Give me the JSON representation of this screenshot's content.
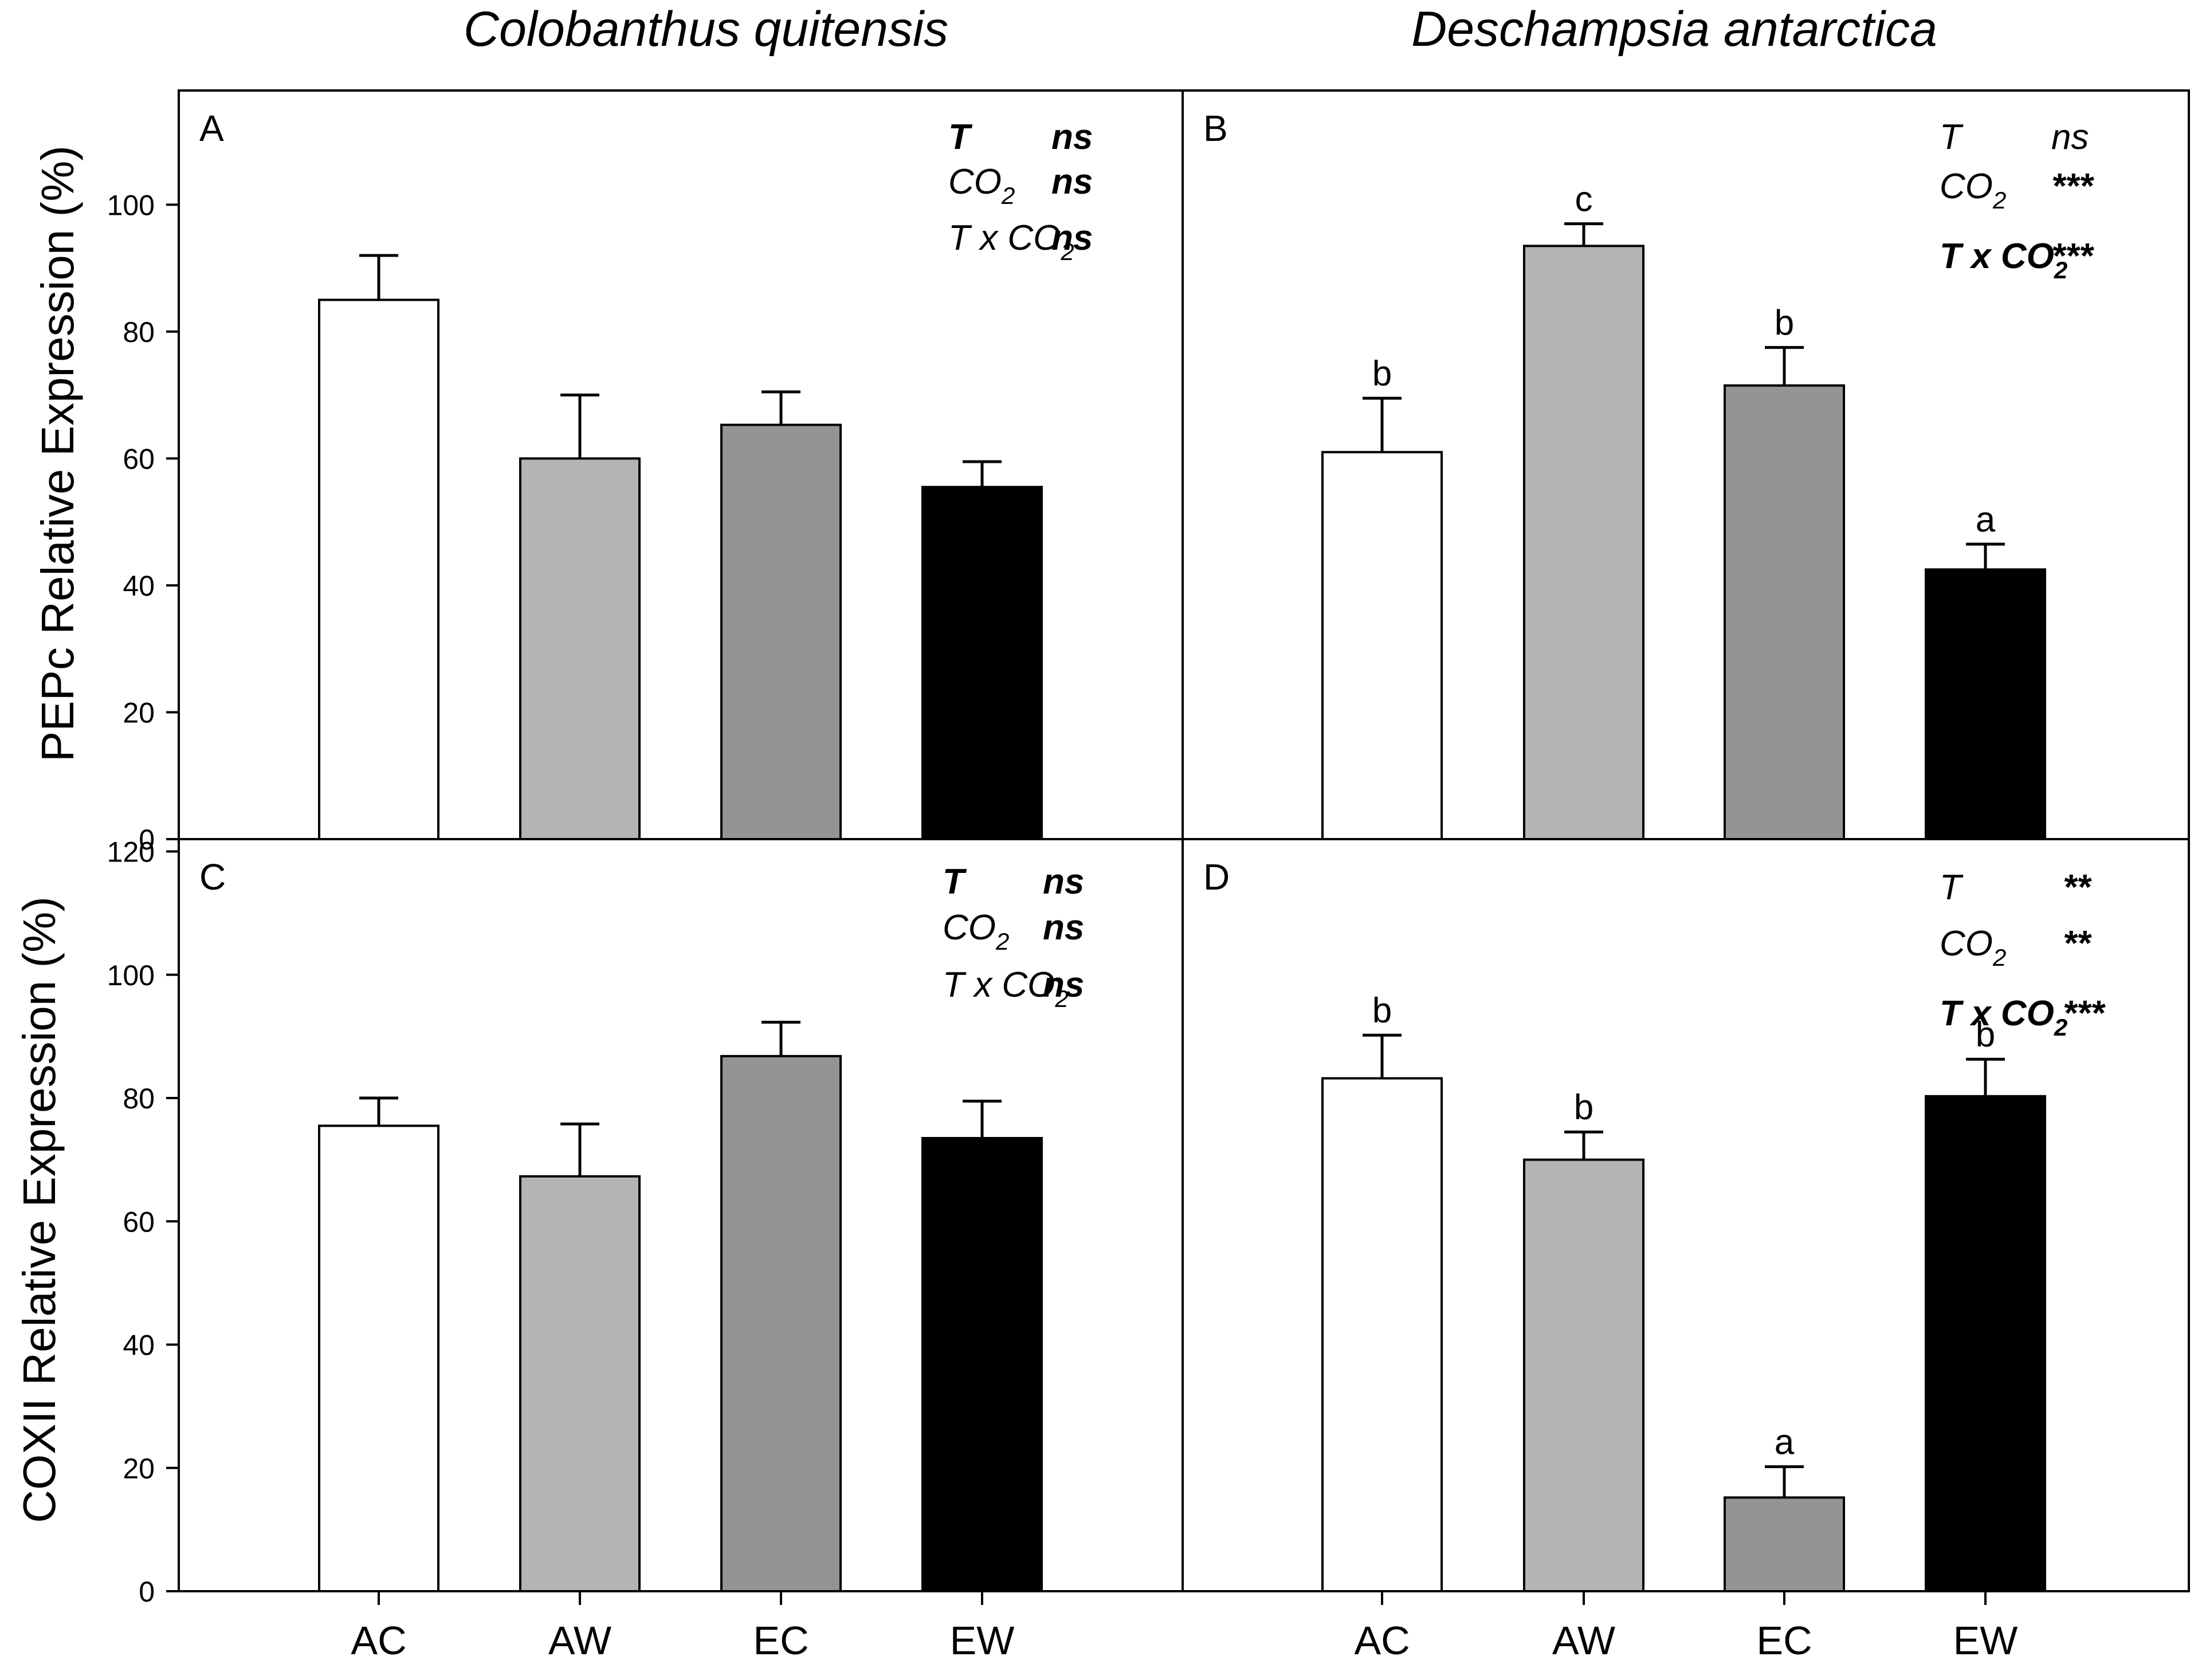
{
  "species": [
    "Colobanthus quitensis",
    "Deschampsia antarctica"
  ],
  "x_categories": [
    "AC",
    "AW",
    "EC",
    "EW"
  ],
  "bar_colors": {
    "AC": "#ffffff",
    "AW": "#b4b4b4",
    "EC": "#949494",
    "EW": "#000000"
  },
  "chart_data": [
    {
      "type": "bar",
      "panel": "A",
      "species": "Colobanthus quitensis",
      "ylabel": "PEPc Relative Expression (%)",
      "ylim": [
        0,
        118
      ],
      "yticks": [
        0,
        20,
        40,
        60,
        80,
        100
      ],
      "categories": [
        "AC",
        "AW",
        "EC",
        "EW"
      ],
      "values": [
        85,
        60,
        65.3,
        55.5
      ],
      "errors": [
        7,
        10,
        5.2,
        4
      ],
      "letters": [
        "",
        "",
        "",
        ""
      ],
      "stats": [
        {
          "term": "T",
          "sig": "ns",
          "bold": true
        },
        {
          "term": "CO2",
          "sig": "ns",
          "bold": false
        },
        {
          "term": "T x CO2",
          "sig": "ns",
          "bold": false
        }
      ]
    },
    {
      "type": "bar",
      "panel": "B",
      "species": "Deschampsia antarctica",
      "ylabel": "PEPc Relative Expression (%)",
      "ylim": [
        0,
        118
      ],
      "yticks": [
        0,
        20,
        40,
        60,
        80,
        100
      ],
      "categories": [
        "AC",
        "AW",
        "EC",
        "EW"
      ],
      "values": [
        61,
        93.5,
        71.5,
        42.5
      ],
      "errors": [
        8.5,
        3.5,
        6,
        4
      ],
      "letters": [
        "b",
        "c",
        "b",
        "a"
      ],
      "stats": [
        {
          "term": "T",
          "sig": "ns",
          "bold": false
        },
        {
          "term": "CO2",
          "sig": "***",
          "bold": false
        },
        {
          "term": "T x CO2",
          "sig": "***",
          "bold": true
        }
      ]
    },
    {
      "type": "bar",
      "panel": "C",
      "species": "Colobanthus quitensis",
      "ylabel": "COXII Relative Expression (%)",
      "ylim": [
        0,
        122
      ],
      "yticks": [
        0,
        20,
        40,
        60,
        80,
        100,
        120
      ],
      "categories": [
        "AC",
        "AW",
        "EC",
        "EW"
      ],
      "values": [
        75.5,
        67.3,
        86.8,
        73.5
      ],
      "errors": [
        4.5,
        8.5,
        5.5,
        6
      ],
      "letters": [
        "",
        "",
        "",
        ""
      ],
      "stats": [
        {
          "term": "T",
          "sig": "ns",
          "bold": true
        },
        {
          "term": "CO2",
          "sig": "ns",
          "bold": false
        },
        {
          "term": "T x CO2",
          "sig": "ns",
          "bold": false
        }
      ]
    },
    {
      "type": "bar",
      "panel": "D",
      "species": "Deschampsia antarctica",
      "ylabel": "COXII Relative Expression (%)",
      "ylim": [
        0,
        122
      ],
      "yticks": [
        0,
        20,
        40,
        60,
        80,
        100,
        120
      ],
      "categories": [
        "AC",
        "AW",
        "EC",
        "EW"
      ],
      "values": [
        83.2,
        70,
        15.2,
        80.3
      ],
      "errors": [
        7,
        4.5,
        5,
        6
      ],
      "letters": [
        "b",
        "b",
        "a",
        "b"
      ],
      "stats": [
        {
          "term": "T",
          "sig": "**",
          "bold": false
        },
        {
          "term": "CO2",
          "sig": "**",
          "bold": false
        },
        {
          "term": "T x CO2",
          "sig": "***",
          "bold": true
        }
      ]
    }
  ]
}
